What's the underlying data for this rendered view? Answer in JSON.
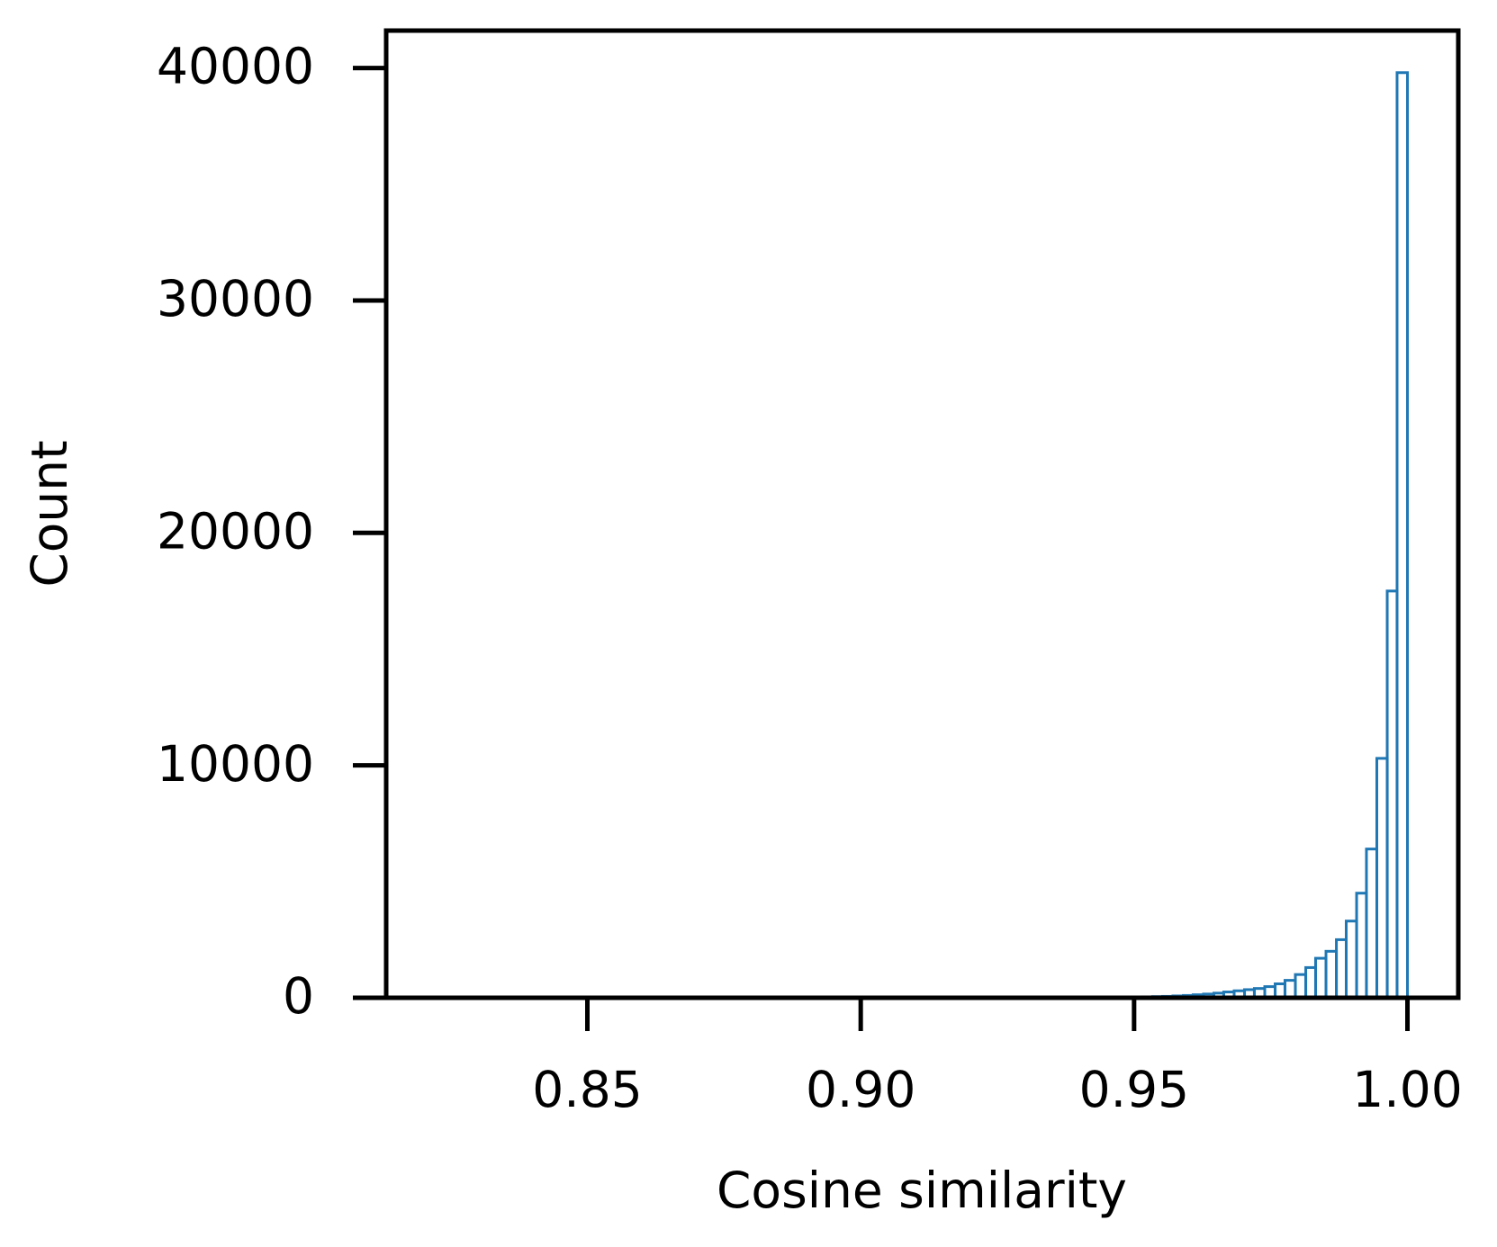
{
  "chart_data": {
    "type": "histogram",
    "xlabel": "Cosine similarity",
    "ylabel": "Count",
    "color": "#1f77b4",
    "xlim": [
      0.8132,
      1.0093
    ],
    "ylim": [
      0,
      41610
    ],
    "xticks": [
      0.85,
      {
        "value": 0.9,
        "label": "0.90"
      },
      0.95,
      {
        "value": 1.0,
        "label": "1.00"
      }
    ],
    "yticks": [
      0,
      10000,
      20000,
      30000,
      40000
    ],
    "bins": [
      0.8134,
      0.8153,
      0.8171,
      0.819,
      0.8209,
      0.8227,
      0.8246,
      0.8265,
      0.8283,
      0.8302,
      0.8321,
      0.8339,
      0.8358,
      0.8377,
      0.8395,
      0.8414,
      0.8433,
      0.8451,
      0.847,
      0.8489,
      0.8507,
      0.8526,
      0.8545,
      0.8563,
      0.8582,
      0.8601,
      0.8619,
      0.8638,
      0.8657,
      0.8675,
      0.8694,
      0.8713,
      0.8731,
      0.875,
      0.8768,
      0.8787,
      0.8806,
      0.8824,
      0.8843,
      0.8862,
      0.888,
      0.8899,
      0.8918,
      0.8936,
      0.8955,
      0.8974,
      0.8992,
      0.9011,
      0.903,
      0.9048,
      0.9067,
      0.9086,
      0.9104,
      0.9123,
      0.9142,
      0.916,
      0.9179,
      0.9198,
      0.9216,
      0.9235,
      0.9254,
      0.9272,
      0.9291,
      0.931,
      0.9328,
      0.9347,
      0.9366,
      0.9384,
      0.9403,
      0.9422,
      0.944,
      0.9459,
      0.9478,
      0.9496,
      0.9515,
      0.9534,
      0.9552,
      0.9571,
      0.959,
      0.9608,
      0.9627,
      0.9646,
      0.9664,
      0.9683,
      0.9702,
      0.972,
      0.9739,
      0.9758,
      0.9776,
      0.9795,
      0.9814,
      0.9832,
      0.9851,
      0.987,
      0.9888,
      0.9907,
      0.9925,
      0.9944,
      0.9963,
      0.9981,
      1.0
    ],
    "values": [
      0,
      0,
      0,
      0,
      0,
      0,
      0,
      0,
      0,
      0,
      0,
      0,
      0,
      0,
      0,
      0,
      0,
      0,
      0,
      0,
      0,
      0,
      0,
      0,
      0,
      0,
      0,
      0,
      0,
      0,
      0,
      0,
      0,
      0,
      0,
      0,
      0,
      0,
      0,
      0,
      0,
      0,
      0,
      0,
      0,
      0,
      0,
      0,
      0,
      0,
      0,
      0,
      0,
      0,
      0,
      0,
      0,
      0,
      0,
      0,
      1,
      2,
      2,
      3,
      4,
      5,
      6,
      8,
      10,
      12,
      15,
      20,
      25,
      30,
      40,
      50,
      60,
      80,
      100,
      130,
      160,
      200,
      250,
      300,
      350,
      400,
      480,
      600,
      750,
      1000,
      1300,
      1700,
      2000,
      2500,
      3300,
      4500,
      6400,
      10300,
      17500,
      39800
    ]
  }
}
